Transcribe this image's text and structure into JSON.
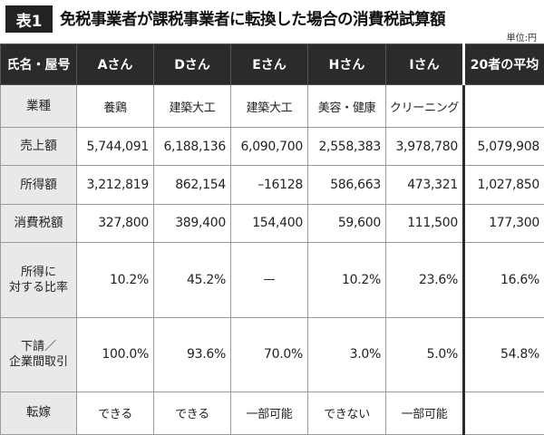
{
  "header": {
    "badge": "表1",
    "title": "免税事業者が課税事業者に転換した場合の消費税試算額",
    "unit": "単位:円"
  },
  "columns": [
    "氏名・屋号",
    "Aさん",
    "Dさん",
    "Eさん",
    "Hさん",
    "Iさん",
    "20者の平均"
  ],
  "rows": [
    {
      "label": [
        "業種"
      ],
      "align": "center",
      "cells": [
        "養鶏",
        "建築大工",
        "建築大工",
        "美容・健康",
        "クリーニング",
        ""
      ]
    },
    {
      "label": [
        "売上額"
      ],
      "align": "right",
      "cells": [
        "5,744,091",
        "6,188,136",
        "6,090,700",
        "2,558,383",
        "3,978,780",
        "5,079,908"
      ]
    },
    {
      "label": [
        "所得額"
      ],
      "align": "right",
      "cells": [
        "3,212,819",
        "862,154",
        "–16128",
        "586,663",
        "473,321",
        "1,027,850"
      ]
    },
    {
      "label": [
        "消費税額"
      ],
      "align": "right",
      "cells": [
        "327,800",
        "389,400",
        "154,400",
        "59,600",
        "111,500",
        "177,300"
      ]
    },
    {
      "label": [
        "所得に",
        "対する比率"
      ],
      "align": "right",
      "cells": [
        "10.2%",
        "45.2%",
        "—",
        "10.2%",
        "23.6%",
        "16.6%"
      ]
    },
    {
      "label": [
        "下請／",
        "企業間取引"
      ],
      "align": "right",
      "cells": [
        "100.0%",
        "93.6%",
        "70.0%",
        "3.0%",
        "5.0%",
        "54.8%"
      ]
    },
    {
      "label": [
        "転嫁"
      ],
      "align": "center",
      "cells": [
        "できる",
        "できる",
        "一部可能",
        "できない",
        "一部可能",
        ""
      ]
    }
  ]
}
